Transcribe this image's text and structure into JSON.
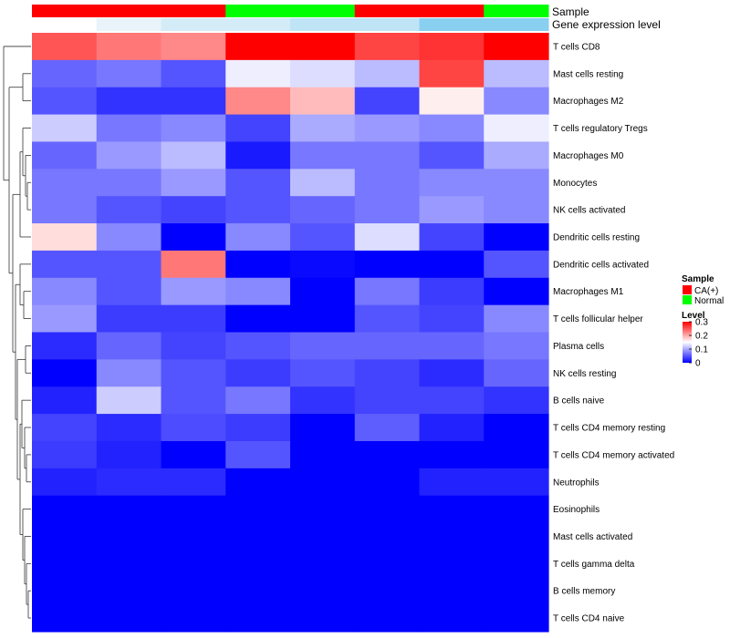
{
  "chart_data": {
    "type": "heatmap",
    "title": "",
    "annotation_tracks": [
      "Sample",
      "Gene expression level"
    ],
    "columns": [
      {
        "sample": "CA(+)",
        "expression": "white"
      },
      {
        "sample": "CA(+)",
        "expression": "very_light_blue"
      },
      {
        "sample": "CA(+)",
        "expression": "light_blue"
      },
      {
        "sample": "Normal",
        "expression": "light_blue"
      },
      {
        "sample": "Normal",
        "expression": "medium_blue"
      },
      {
        "sample": "CA(+)",
        "expression": "medium_blue"
      },
      {
        "sample": "CA(+)",
        "expression": "sky_blue"
      },
      {
        "sample": "Normal",
        "expression": "sky_blue"
      }
    ],
    "expression_colors": {
      "white": "#ffffff",
      "very_light_blue": "#e9f3fa",
      "light_blue": "#d4ecf8",
      "medium_blue": "#bfe4f6",
      "sky_blue": "#89cff0"
    },
    "rows": [
      "T cells CD8",
      "Mast cells resting",
      "Macrophages M2",
      "T cells regulatory  Tregs",
      "Macrophages M0",
      "Monocytes",
      "NK cells activated",
      "Dendritic cells resting",
      "Dendritic cells activated",
      "Macrophages M1",
      "T cells follicular helper",
      "Plasma cells",
      "NK cells resting",
      "B cells naive",
      "T cells CD4 memory resting",
      "T cells CD4 memory activated",
      "Neutrophils",
      "Eosinophils",
      "Mast cells activated",
      "T cells gamma delta",
      "B cells memory",
      "T cells CD4 naive"
    ],
    "values": [
      [
        0.25,
        0.23,
        0.22,
        0.3,
        0.3,
        0.26,
        0.27,
        0.3
      ],
      [
        0.06,
        0.07,
        0.05,
        0.14,
        0.13,
        0.11,
        0.26,
        0.11
      ],
      [
        0.05,
        0.03,
        0.03,
        0.22,
        0.19,
        0.04,
        0.16,
        0.08
      ],
      [
        0.12,
        0.07,
        0.08,
        0.04,
        0.1,
        0.09,
        0.08,
        0.14
      ],
      [
        0.06,
        0.09,
        0.11,
        0.015,
        0.07,
        0.07,
        0.05,
        0.1
      ],
      [
        0.07,
        0.07,
        0.09,
        0.05,
        0.11,
        0.07,
        0.08,
        0.08
      ],
      [
        0.07,
        0.05,
        0.04,
        0.05,
        0.06,
        0.07,
        0.09,
        0.08
      ],
      [
        0.17,
        0.08,
        0.0,
        0.08,
        0.05,
        0.13,
        0.04,
        0.0
      ],
      [
        0.05,
        0.05,
        0.23,
        0.0,
        0.005,
        0.0,
        0.0,
        0.05
      ],
      [
        0.08,
        0.05,
        0.09,
        0.08,
        0.0,
        0.07,
        0.035,
        0.0
      ],
      [
        0.09,
        0.035,
        0.035,
        0.0,
        0.0,
        0.05,
        0.04,
        0.08
      ],
      [
        0.025,
        0.06,
        0.04,
        0.05,
        0.06,
        0.06,
        0.06,
        0.07
      ],
      [
        0.0,
        0.08,
        0.05,
        0.035,
        0.05,
        0.04,
        0.025,
        0.06
      ],
      [
        0.02,
        0.12,
        0.05,
        0.07,
        0.03,
        0.04,
        0.04,
        0.03
      ],
      [
        0.04,
        0.025,
        0.045,
        0.035,
        0.0,
        0.055,
        0.02,
        0.0
      ],
      [
        0.035,
        0.02,
        0.0,
        0.05,
        0.0,
        0.0,
        0.0,
        0.0
      ],
      [
        0.02,
        0.025,
        0.025,
        0.0,
        0.0,
        0.0,
        0.02,
        0.02
      ],
      [
        0.0,
        0.0,
        0.0,
        0.0,
        0.0,
        0.0,
        0.0,
        0.0
      ],
      [
        0.0,
        0.0,
        0.0,
        0.0,
        0.0,
        0.0,
        0.0,
        0.0
      ],
      [
        0.0,
        0.0,
        0.0,
        0.0,
        0.0,
        0.0,
        0.0,
        0.0
      ],
      [
        0.0,
        0.0,
        0.0,
        0.0,
        0.0,
        0.0,
        0.0,
        0.0
      ],
      [
        0.0,
        0.0,
        0.0,
        0.0,
        0.0,
        0.0,
        0.0,
        0.0
      ]
    ],
    "color_scale": {
      "min": 0,
      "max": 0.3,
      "low": "#0000ff",
      "mid": "#ffffff",
      "high": "#ff0000",
      "midpoint": 0.15
    },
    "legend": {
      "sample_title": "Sample",
      "sample_entries": [
        {
          "label": "CA(+)",
          "color": "#ff0000"
        },
        {
          "label": "Normal",
          "color": "#00ff00"
        }
      ],
      "level_title": "Level",
      "level_ticks": [
        "0.3",
        "0.2",
        "0.1",
        "0"
      ],
      "level_tick_values": [
        0.3,
        0.2,
        0.1,
        0
      ],
      "placement": "right"
    },
    "dendrogram": "row clustering tree on left"
  }
}
